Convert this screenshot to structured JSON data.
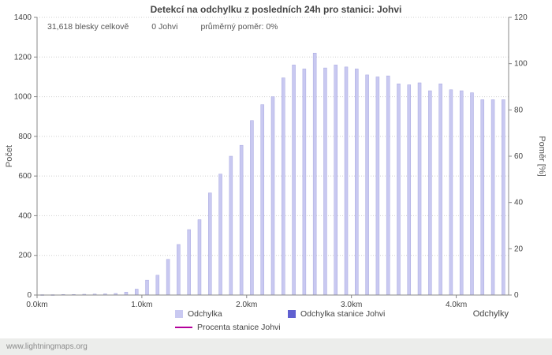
{
  "page": {
    "watermark": "www.lightningmaps.org"
  },
  "chart": {
    "title": "Detekcí na odchylku z posledních 24h pro stanici: Johvi",
    "stats": {
      "total": "31,618 blesky celkově",
      "station": "0 Johvi",
      "ratio": "průměrný poměr: 0%"
    },
    "ylabel_left": "Počet",
    "ylabel_right": "Poměr [%]",
    "xlabel": "Odchylky",
    "legend": [
      {
        "label": "Odchylka",
        "color": "#c9c9f1",
        "type": "square"
      },
      {
        "label": "Odchylka stanice Johvi",
        "color": "#6060d0",
        "type": "square"
      },
      {
        "label": "Procenta stanice Johvi",
        "color": "#b4009b",
        "type": "line"
      }
    ]
  },
  "chart_data": {
    "type": "bar",
    "title": "Detekcí na odchylku z posledních 24h pro stanici: Johvi",
    "xlabel": "Odchylky",
    "ylabel": "Počet",
    "y2label": "Poměr [%]",
    "legend_entries": [
      "Odchylka",
      "Odchylka stanice Johvi",
      "Procenta stanice Johvi"
    ],
    "legend_position": "bottom",
    "grid": true,
    "x_start_km": 0.0,
    "x_bin_km": 0.1,
    "x_range_km": [
      0.0,
      4.5
    ],
    "x_ticks": [
      "0.0km",
      "1.0km",
      "2.0km",
      "3.0km",
      "4.0km"
    ],
    "values": [
      2,
      2,
      3,
      3,
      4,
      5,
      6,
      8,
      15,
      30,
      75,
      100,
      180,
      255,
      330,
      380,
      515,
      610,
      700,
      755,
      880,
      960,
      1000,
      1095,
      1160,
      1140,
      1220,
      1145,
      1160,
      1150,
      1140,
      1110,
      1100,
      1105,
      1065,
      1060,
      1070,
      1030,
      1065,
      1035,
      1030,
      1020,
      985,
      985,
      985
    ],
    "station_values_total": 0,
    "ratio_series_percent": 0,
    "ylim_left": [
      0,
      1400
    ],
    "yticks_left": [
      0,
      200,
      400,
      600,
      800,
      1000,
      1200,
      1400
    ],
    "ylim_right": [
      0,
      120
    ],
    "yticks_right": [
      0,
      20,
      40,
      60,
      80,
      100,
      120
    ],
    "bar_color": "#c9c9f1",
    "bar_edge_color": "#a8a8e0",
    "station_bar_color": "#6060d0",
    "ratio_line_color": "#b4009b"
  }
}
